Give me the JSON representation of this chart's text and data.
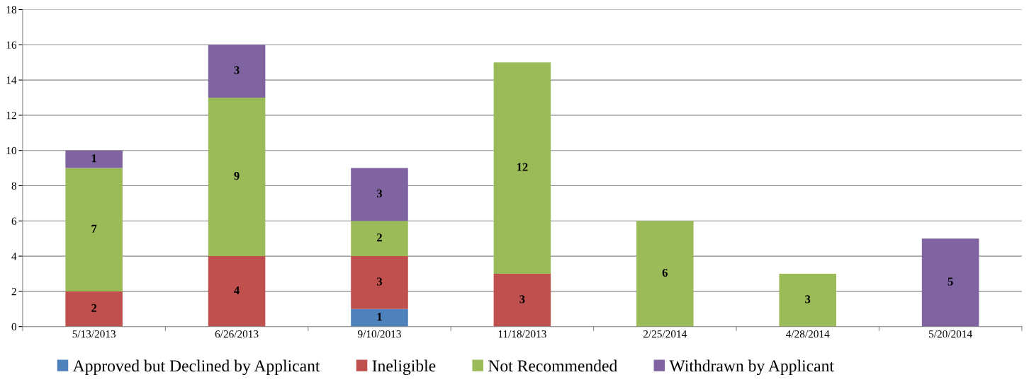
{
  "chart_data": {
    "type": "bar",
    "stacked": true,
    "categories": [
      "5/13/2013",
      "6/26/2013",
      "9/10/2013",
      "11/18/2013",
      "2/25/2014",
      "4/28/2014",
      "5/20/2014"
    ],
    "series": [
      {
        "name": "Approved but Declined by Applicant",
        "color": "#4f81bd",
        "values": [
          null,
          null,
          1,
          null,
          null,
          null,
          null
        ]
      },
      {
        "name": "Ineligible",
        "color": "#c0504d",
        "values": [
          2,
          4,
          3,
          3,
          null,
          null,
          null
        ]
      },
      {
        "name": "Not Recommended",
        "color": "#9bbb59",
        "values": [
          7,
          9,
          2,
          12,
          6,
          3,
          null
        ]
      },
      {
        "name": "Withdrawn by Applicant",
        "color": "#8064a2",
        "values": [
          1,
          3,
          3,
          null,
          null,
          null,
          5
        ]
      }
    ],
    "ylim": [
      0,
      18
    ],
    "yticks": [
      0,
      2,
      4,
      6,
      8,
      10,
      12,
      14,
      16,
      18
    ],
    "grid": "y",
    "legend": "bottom",
    "data_labels": true
  }
}
